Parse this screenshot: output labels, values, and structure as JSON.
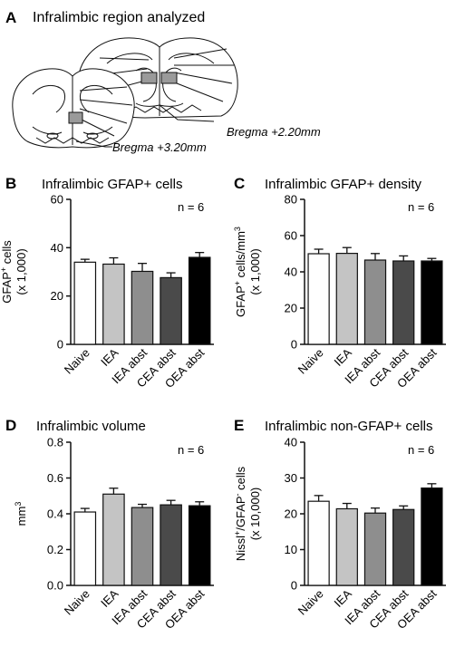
{
  "panel_a": {
    "letter": "A",
    "title": "Infralimbic region analyzed",
    "bregma_labels": [
      "Bregma +2.20mm",
      "Bregma +3.20mm"
    ]
  },
  "colors": {
    "fills": [
      "#ffffff",
      "#c4c4c4",
      "#8e8e8e",
      "#4a4a4a",
      "#000000"
    ],
    "stroke": "#000000",
    "region_fill": "#9a9a9a"
  },
  "chart_data": [
    {
      "type": "bar",
      "letter": "B",
      "title": "Infralimbic GFAP+ cells",
      "n_label": "n = 6",
      "categories": [
        "Naive",
        "IEA",
        "IEA abst",
        "CEA abst",
        "OEA abst"
      ],
      "values": [
        34,
        33.2,
        30.2,
        27.6,
        36
      ],
      "errors": [
        1.2,
        2.6,
        3.3,
        2.0,
        2.0
      ],
      "ylim": [
        0,
        60
      ],
      "yticks": [
        "0",
        "20",
        "40",
        "60"
      ],
      "ylabel_lines": [
        {
          "main": "GFAP",
          "sup": "+",
          "rest": " cells"
        },
        {
          "main": "(x 1,000)",
          "sup": "",
          "rest": ""
        }
      ]
    },
    {
      "type": "bar",
      "letter": "C",
      "title": "Infralimbic GFAP+ density",
      "n_label": "n = 6",
      "categories": [
        "Naive",
        "IEA",
        "IEA abst",
        "CEA abst",
        "OEA abst"
      ],
      "values": [
        50,
        50.2,
        46.5,
        46,
        46
      ],
      "errors": [
        2.5,
        3.2,
        3.6,
        2.8,
        1.4
      ],
      "ylim": [
        0,
        80
      ],
      "yticks": [
        "0",
        "20",
        "40",
        "60",
        "80"
      ],
      "ylabel_lines": [
        {
          "main": "GFAP",
          "sup": "+",
          "rest": " cells/mm",
          "sup2": "3"
        },
        {
          "main": "(x 1,000)",
          "sup": "",
          "rest": ""
        }
      ]
    },
    {
      "type": "bar",
      "letter": "D",
      "title": "Infralimbic volume",
      "n_label": "n = 6",
      "categories": [
        "Naive",
        "IEA",
        "IEA abst",
        "CEA abst",
        "OEA abst"
      ],
      "values": [
        0.41,
        0.51,
        0.435,
        0.45,
        0.445
      ],
      "errors": [
        0.02,
        0.033,
        0.018,
        0.025,
        0.022
      ],
      "ylim": [
        0,
        0.8
      ],
      "yticks": [
        "0.0",
        "0.2",
        "0.4",
        "0.6",
        "0.8"
      ],
      "ylabel_lines": [
        {
          "main": "mm",
          "sup": "3",
          "rest": ""
        }
      ]
    },
    {
      "type": "bar",
      "letter": "E",
      "title": "Infralimbic non-GFAP+ cells",
      "n_label": "n = 6",
      "categories": [
        "Naive",
        "IEA",
        "IEA abst",
        "CEA abst",
        "OEA abst"
      ],
      "values": [
        23.5,
        21.4,
        20.2,
        21.2,
        27.2
      ],
      "errors": [
        1.6,
        1.5,
        1.4,
        1.0,
        1.2
      ],
      "ylim": [
        0,
        40
      ],
      "yticks": [
        "0",
        "10",
        "20",
        "30",
        "40"
      ],
      "ylabel_lines": [
        {
          "main": "Nissl",
          "sup": "+",
          "rest": "/GFAP",
          "sup2": "-",
          "rest2": " cells"
        },
        {
          "main": "(x 10,000)",
          "sup": "",
          "rest": ""
        }
      ]
    }
  ]
}
